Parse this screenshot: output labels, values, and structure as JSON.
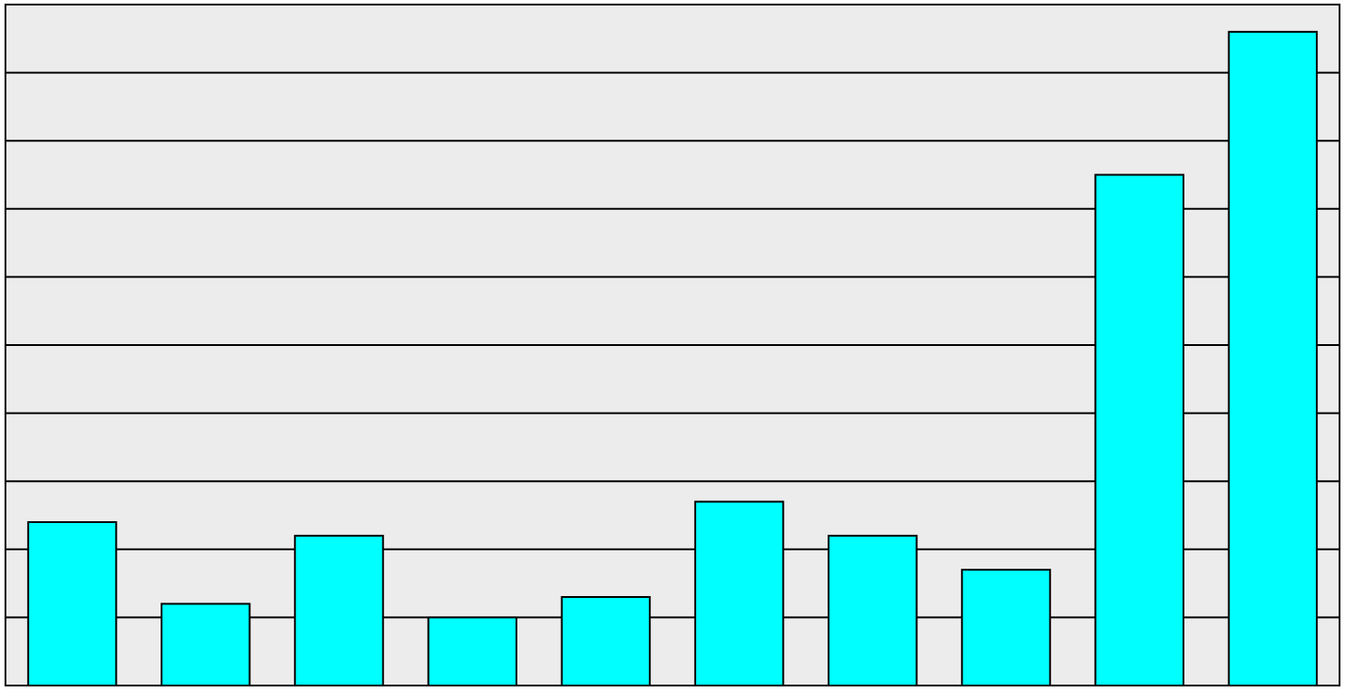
{
  "chart_data": {
    "type": "bar",
    "values": [
      2.4,
      1.2,
      2.2,
      1.0,
      1.3,
      2.7,
      2.2,
      1.7,
      7.5,
      9.6
    ],
    "color": "#00ffff",
    "ylim": [
      0,
      10
    ],
    "yticks": [
      0,
      1,
      2,
      3,
      4,
      5,
      6,
      7,
      8,
      9,
      10
    ],
    "grid": true
  }
}
